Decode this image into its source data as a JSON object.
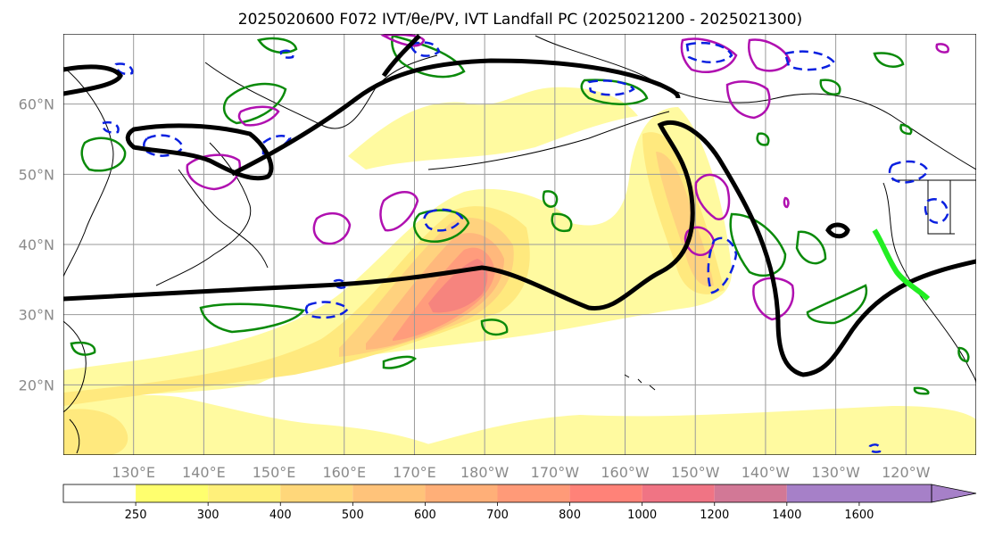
{
  "title": "2025020600 F072 IVT/θe/PV, IVT Landfall PC (2025021200 - 2025021300)",
  "map": {
    "lat_labels": [
      "60°N",
      "50°N",
      "40°N",
      "30°N",
      "20°N"
    ],
    "lon_labels": [
      "130°E",
      "140°E",
      "150°E",
      "160°E",
      "170°E",
      "180°W",
      "170°W",
      "160°W",
      "150°W",
      "140°W",
      "130°W",
      "120°W"
    ],
    "lon_range": [
      120,
      250
    ],
    "lat_range": [
      10,
      70
    ],
    "grid": true
  },
  "colorbar": {
    "labels": [
      "250",
      "300",
      "400",
      "500",
      "600",
      "700",
      "800",
      "1000",
      "1200",
      "1400",
      "1600"
    ],
    "colors": [
      "#ffffff",
      "#ffff6e",
      "#fff07a",
      "#ffd77a",
      "#ffc37a",
      "#ffaf78",
      "#ff9a78",
      "#ff8278",
      "#f07484",
      "#d27896",
      "#a680c8"
    ],
    "extend": "max"
  },
  "layers": {
    "ivt_fill_colors": [
      "#fffaa0",
      "#ffe97e",
      "#ffd27e",
      "#ffb87c",
      "#ff9c7c",
      "#f6847e"
    ],
    "pc_contour_color": "#000000",
    "theta_e_color": "#0a8a0a",
    "pv_positive_color": "#b010b0",
    "pv_negative_color": "#0a20e0",
    "landfall_color": "#22ee22",
    "coast_color": "#000000",
    "grid_color": "#9a9a9a"
  }
}
